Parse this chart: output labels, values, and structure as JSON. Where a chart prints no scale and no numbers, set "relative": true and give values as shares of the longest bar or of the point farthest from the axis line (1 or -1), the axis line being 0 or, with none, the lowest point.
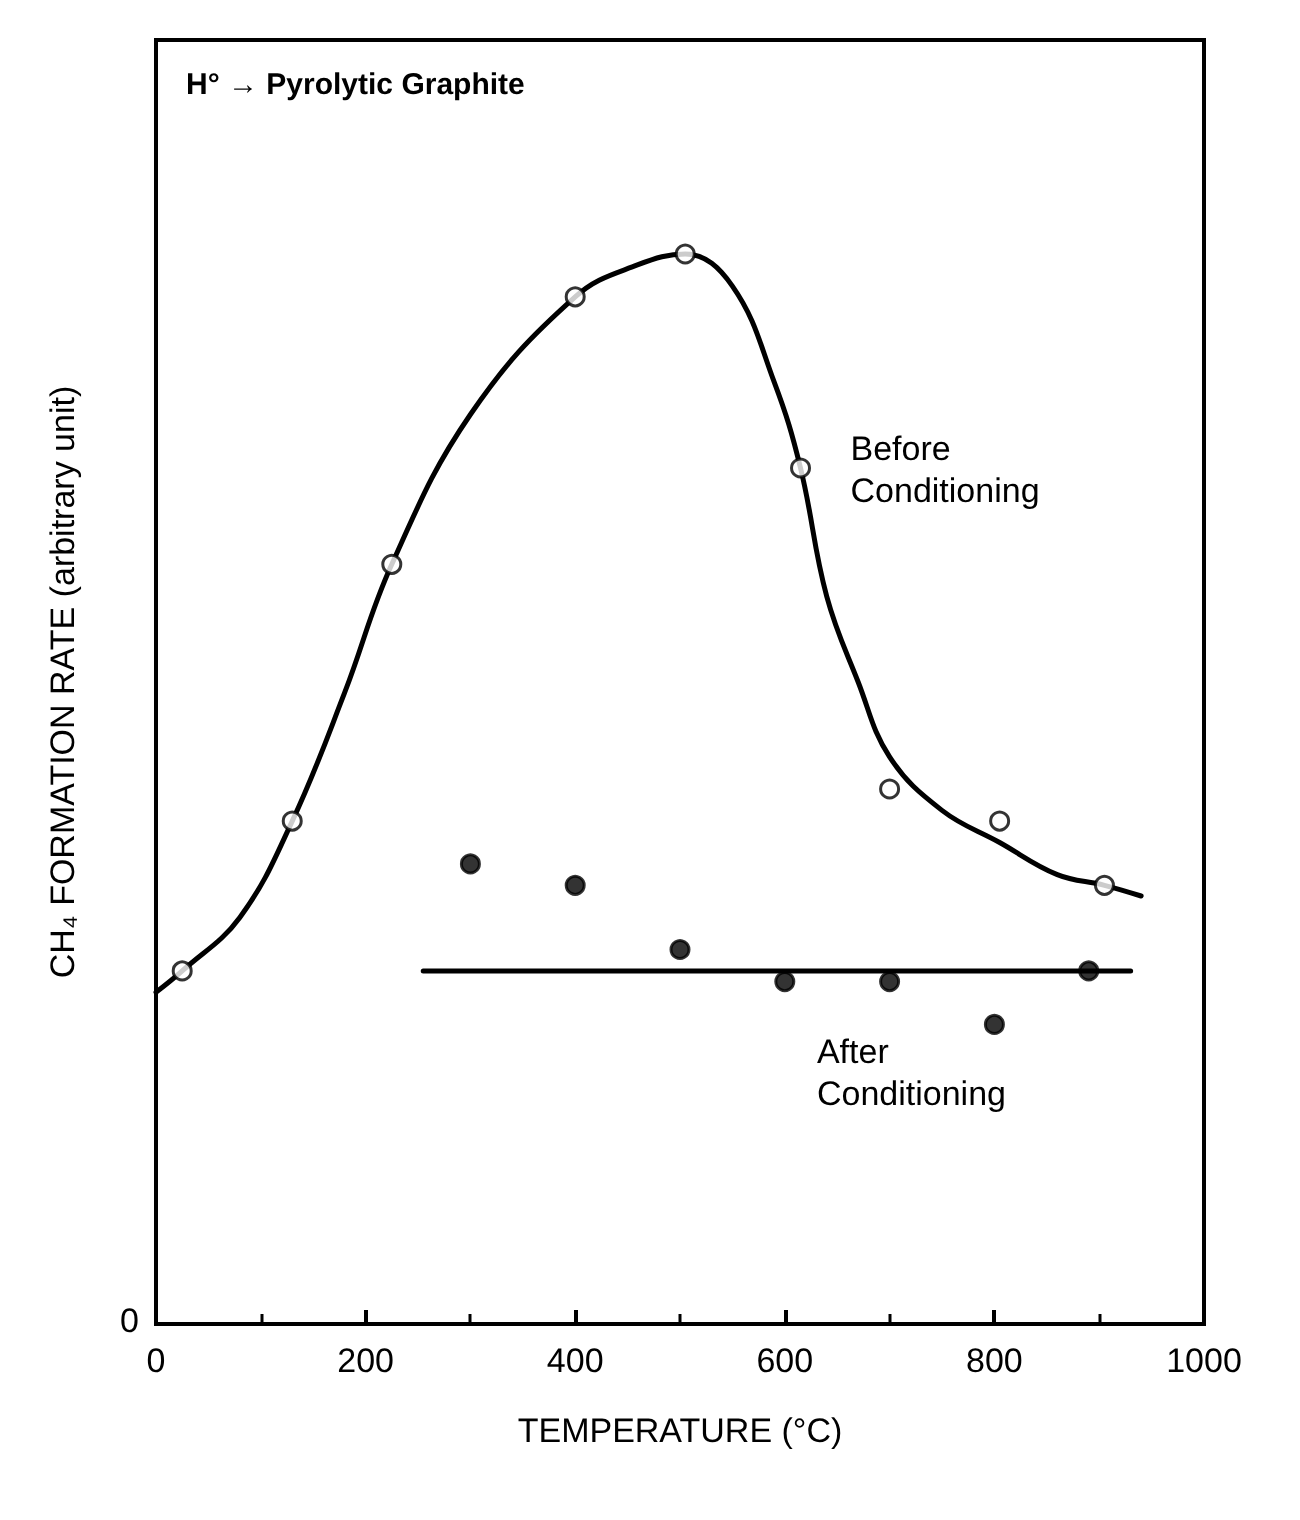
{
  "chart_data": {
    "type": "scatter",
    "title": "H° → Pyrolytic Graphite",
    "xlabel": "TEMPERATURE (°C)",
    "ylabel": "CH₄ FORMATION RATE (arbitrary unit)",
    "relative": true,
    "xlim": [
      0,
      1000
    ],
    "xticks": [
      0,
      200,
      400,
      600,
      800,
      1000
    ],
    "grid": false,
    "legend": false,
    "marker": "circle",
    "series": [
      {
        "type": "line",
        "name": "Before Conditioning",
        "color": "#000000",
        "marker": "none",
        "x": [
          0,
          25,
          80,
          130,
          180,
          225,
          300,
          400,
          460,
          505,
          550,
          590,
          615,
          640,
          670,
          700,
          750,
          805,
          860,
          905,
          940
        ],
        "values": [
          0.31,
          0.33,
          0.38,
          0.47,
          0.59,
          0.71,
          0.85,
          0.96,
          0.99,
          1.0,
          0.97,
          0.88,
          0.8,
          0.68,
          0.6,
          0.53,
          0.48,
          0.45,
          0.42,
          0.41,
          0.4
        ]
      },
      {
        "color": "#ffffff",
        "x": [
          25,
          130,
          225,
          400,
          505,
          615,
          700,
          805,
          905
        ],
        "values": [
          0.33,
          0.47,
          0.71,
          0.96,
          1.0,
          0.8,
          0.5,
          0.47,
          0.41
        ]
      },
      {
        "type": "line",
        "name": "After Conditioning",
        "color": "#000000",
        "marker": "none",
        "x": [
          255,
          930
        ],
        "values": [
          0.33,
          0.33
        ]
      },
      {
        "color": "#000000",
        "x": [
          300,
          400,
          500,
          600,
          700,
          800,
          890
        ],
        "values": [
          0.43,
          0.41,
          0.35,
          0.32,
          0.32,
          0.28,
          0.33
        ]
      }
    ],
    "annotations": [
      "0"
    ]
  }
}
